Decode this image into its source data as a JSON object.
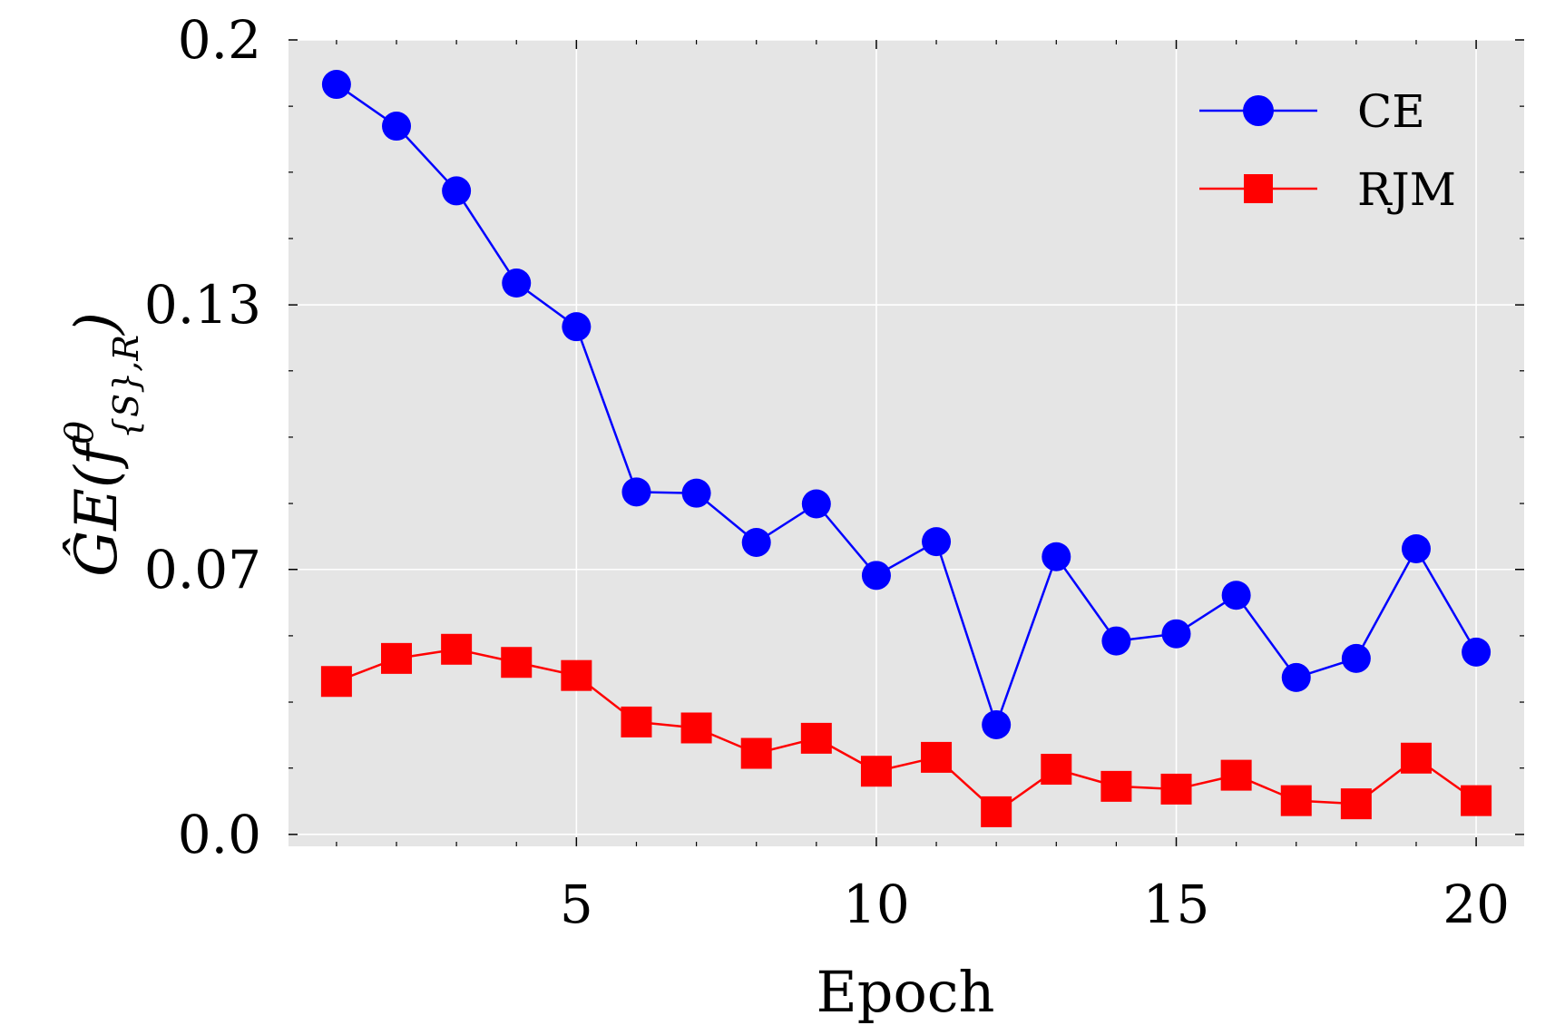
{
  "chart_data": {
    "type": "line",
    "xlabel": "Epoch",
    "ylabel": "ĜE(f",
    "ylabel_sup": "θ",
    "ylabel_sub": "{S},R",
    "ylabel_close": ")",
    "xlim": [
      0.2,
      20.8
    ],
    "ylim": [
      -0.003,
      0.2
    ],
    "xticks": [
      5,
      10,
      15,
      20
    ],
    "xtick_labels": [
      "5",
      "10",
      "15",
      "20"
    ],
    "xticks_minor": [
      1,
      2,
      3,
      4,
      6,
      7,
      8,
      9,
      11,
      12,
      13,
      14,
      16,
      17,
      18,
      19
    ],
    "yticks": [
      0.0,
      0.07,
      0.13,
      0.2
    ],
    "ytick_labels": [
      "0.0",
      "0.07",
      "0.13",
      "0.2"
    ],
    "yticks_grid": [
      0.0,
      0.0667,
      0.1333,
      0.2
    ],
    "yticks_minor": [
      0.0167,
      0.0333,
      0.05,
      0.0833,
      0.1,
      0.1167,
      0.15,
      0.1667,
      0.1833
    ],
    "grid": true,
    "background": "#e5e5e5",
    "legend_position": "top-right",
    "x": [
      1,
      2,
      3,
      4,
      5,
      6,
      7,
      8,
      9,
      10,
      11,
      12,
      13,
      14,
      15,
      16,
      17,
      18,
      19,
      20
    ],
    "series": [
      {
        "name": "CE",
        "color": "#0000ff",
        "marker": "circle",
        "values": [
          0.1888,
          0.1783,
          0.162,
          0.1388,
          0.1278,
          0.0862,
          0.0859,
          0.0735,
          0.0832,
          0.0652,
          0.0737,
          0.0276,
          0.0699,
          0.0487,
          0.0505,
          0.0602,
          0.0395,
          0.0443,
          0.0719,
          0.0459
        ]
      },
      {
        "name": "RJM",
        "color": "#ff0000",
        "marker": "square",
        "values": [
          0.0385,
          0.0443,
          0.0466,
          0.0433,
          0.04,
          0.0283,
          0.0268,
          0.0204,
          0.0242,
          0.0159,
          0.0194,
          0.0057,
          0.0164,
          0.0121,
          0.0114,
          0.0149,
          0.0085,
          0.0077,
          0.0192,
          0.0085
        ]
      }
    ]
  }
}
